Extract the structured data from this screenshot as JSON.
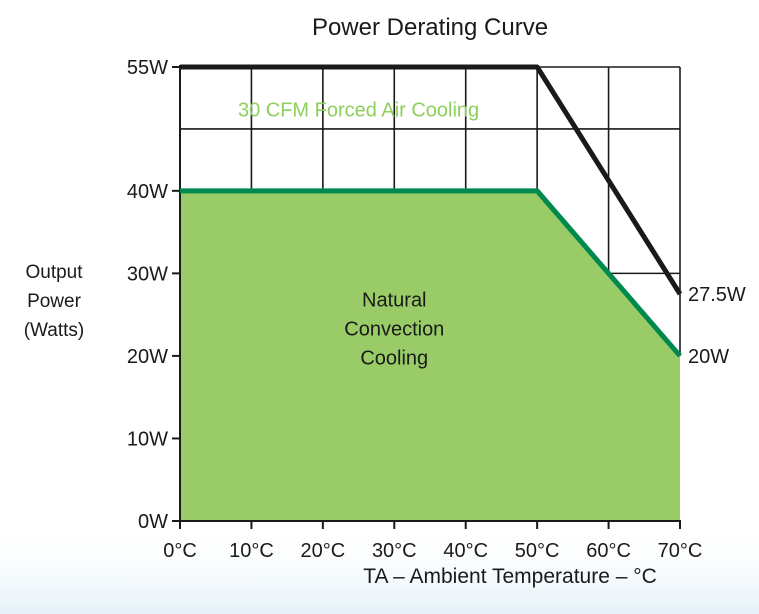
{
  "chart_data": {
    "type": "area",
    "title": "Power Derating Curve",
    "xlabel": "TA – Ambient Temperature – °C",
    "ylabel": [
      "Output",
      "Power",
      "(Watts)"
    ],
    "x_ticks": [
      "0°C",
      "10°C",
      "20°C",
      "30°C",
      "40°C",
      "50°C",
      "60°C",
      "70°C"
    ],
    "y_ticks": [
      "0W",
      "10W",
      "20W",
      "30W",
      "40W",
      "55W"
    ],
    "y_tick_values": [
      0,
      10,
      20,
      30,
      40,
      55
    ],
    "xlim": [
      0,
      70
    ],
    "ylim": [
      0,
      55
    ],
    "grid": "upper region only (above 40W)",
    "series": [
      {
        "name": "30 CFM Forced Air Cooling",
        "x": [
          0,
          50,
          70
        ],
        "y": [
          55,
          55,
          27.5
        ],
        "color": "#1a1a1a",
        "end_label": "27.5W"
      },
      {
        "name": "Natural Convection Cooling",
        "x": [
          0,
          50,
          70
        ],
        "y": [
          40,
          40,
          20
        ],
        "color": "#00894f",
        "fill": "#99cc66",
        "end_label": "20W"
      }
    ],
    "region_label_lines": [
      "Natural",
      "Convection",
      "Cooling"
    ],
    "forced_label_color": "#8fcf5c"
  }
}
